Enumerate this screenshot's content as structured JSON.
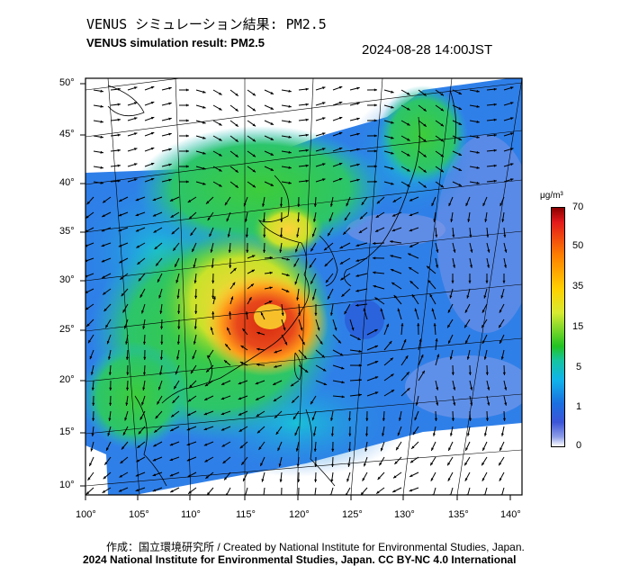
{
  "title_ja": "VENUS シミュレーション結果: PM2.5",
  "title_en": "VENUS simulation result: PM2.5",
  "timestamp": "2024-08-28 14:00JST",
  "credit": "作成：国立環境研究所 / Created by National Institute for Environmental Studies, Japan.",
  "copyright": "2024 National Institute for Environmental Studies, Japan. CC BY-NC 4.0 International",
  "map": {
    "lon_labels": [
      "100°",
      "105°",
      "110°",
      "115°",
      "120°",
      "125°",
      "130°",
      "135°",
      "140°"
    ],
    "lat_labels": [
      "50°",
      "45°",
      "40°",
      "35°",
      "30°",
      "25°",
      "20°",
      "15°",
      "10°"
    ]
  },
  "colorbar": {
    "unit": "μg/m³",
    "tick_labels": [
      "70",
      "50",
      "35",
      "15",
      "5",
      "1",
      "0"
    ],
    "colors": [
      "#8b0000",
      "#e31a1c",
      "#ff7f00",
      "#ffd000",
      "#22c322",
      "#10b4ea",
      "#1a6fe0",
      "#8c9ce8",
      "#ffffff"
    ]
  }
}
